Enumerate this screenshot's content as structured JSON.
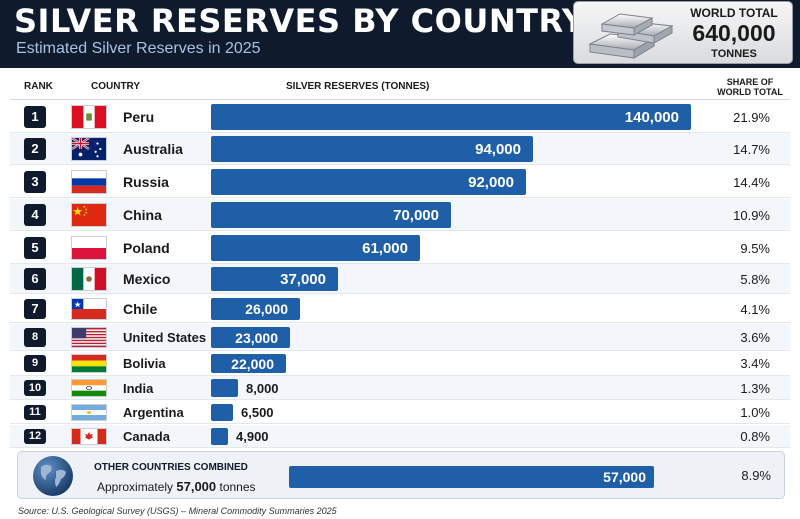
{
  "header": {
    "title": "SILVER RESERVES BY COUNTRY",
    "subtitle": "Estimated Silver Reserves in 2025",
    "world_total": {
      "label": "WORLD TOTAL",
      "value": "640,000",
      "unit": "TONNES",
      "icon": "silver-bars-icon"
    }
  },
  "columns": {
    "rank": "RANK",
    "country": "COUNTRY",
    "reserves": "SILVER RESERVES (TONNES)",
    "share_line1": "SHARE OF",
    "share_line2": "WORLD TOTAL"
  },
  "colors": {
    "header_bg": "#0f1a2c",
    "bar": "#1f5fa8",
    "subtitle": "#a9c2e4"
  },
  "chart_data": {
    "type": "bar",
    "orientation": "horizontal",
    "title": "SILVER RESERVES BY COUNTRY",
    "subtitle": "Estimated Silver Reserves in 2025",
    "xlabel": "SILVER RESERVES (TONNES)",
    "xlim": [
      0,
      140000
    ],
    "grid": false,
    "legend": "none",
    "rows": [
      {
        "rank": "1",
        "country": "Peru",
        "value": 140000,
        "label": "140,000",
        "share": "21.9%",
        "flag": "peru-flag-icon"
      },
      {
        "rank": "2",
        "country": "Australia",
        "value": 94000,
        "label": "94,000",
        "share": "14.7%",
        "flag": "australia-flag-icon"
      },
      {
        "rank": "3",
        "country": "Russia",
        "value": 92000,
        "label": "92,000",
        "share": "14.4%",
        "flag": "russia-flag-icon"
      },
      {
        "rank": "4",
        "country": "China",
        "value": 70000,
        "label": "70,000",
        "share": "10.9%",
        "flag": "china-flag-icon"
      },
      {
        "rank": "5",
        "country": "Poland",
        "value": 61000,
        "label": "61,000",
        "share": "9.5%",
        "flag": "poland-flag-icon"
      },
      {
        "rank": "6",
        "country": "Mexico",
        "value": 37000,
        "label": "37,000",
        "share": "5.8%",
        "flag": "mexico-flag-icon"
      },
      {
        "rank": "7",
        "country": "Chile",
        "value": 26000,
        "label": "26,000",
        "share": "4.1%",
        "flag": "chile-flag-icon"
      },
      {
        "rank": "8",
        "country": "United States",
        "value": 23000,
        "label": "23,000",
        "share": "3.6%",
        "flag": "usa-flag-icon"
      },
      {
        "rank": "9",
        "country": "Bolivia",
        "value": 22000,
        "label": "22,000",
        "share": "3.4%",
        "flag": "bolivia-flag-icon"
      },
      {
        "rank": "10",
        "country": "India",
        "value": 8000,
        "label": "8,000",
        "share": "1.3%",
        "flag": "india-flag-icon"
      },
      {
        "rank": "11",
        "country": "Argentina",
        "value": 6500,
        "label": "6,500",
        "share": "1.0%",
        "flag": "argentina-flag-icon"
      },
      {
        "rank": "12",
        "country": "Canada",
        "value": 4900,
        "label": "4,900",
        "share": "0.8%",
        "flag": "canada-flag-icon"
      }
    ],
    "other": {
      "title": "OTHER COUNTRIES COMBINED",
      "note_prefix": "Approximately",
      "note_value": "57,000",
      "note_suffix": "tonnes",
      "value": 57000,
      "label": "57,000",
      "share": "8.9%",
      "icon": "globe-icon"
    }
  },
  "source": "Source: U.S. Geological Survey (USGS) – Mineral Commodity Summaries 2025"
}
